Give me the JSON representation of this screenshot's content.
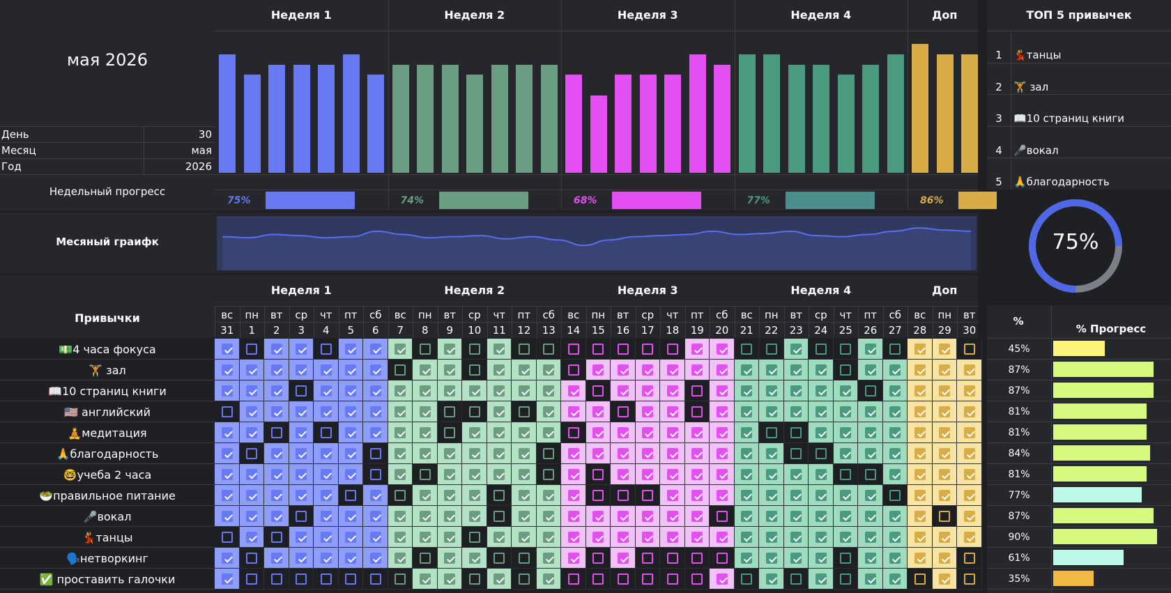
{
  "header": {
    "month_title": "мая 2026",
    "info": [
      {
        "label": "День",
        "value": "30"
      },
      {
        "label": "Месяц",
        "value": "мая"
      },
      {
        "label": "Год",
        "value": "2026"
      }
    ],
    "weekly_progress_label": "Недельный прогресс",
    "monthly_chart_label": "Месяный граифк",
    "habits_label": "Привычки"
  },
  "weeks": [
    {
      "title": "Неделя 1",
      "color": "#6779f5",
      "light": "#8f9ef9",
      "pct": "75%",
      "progress": 0.75,
      "days": [
        "вс",
        "пн",
        "вт",
        "ср",
        "чт",
        "пт",
        "сб"
      ],
      "nums": [
        "31",
        "1",
        "2",
        "3",
        "4",
        "5",
        "6"
      ],
      "bars": [
        0.92,
        0.76,
        0.84,
        0.84,
        0.84,
        0.92,
        0.76
      ]
    },
    {
      "title": "Неделя 2",
      "color": "#6b9d82",
      "light": "#b4e2c5",
      "pct": "74%",
      "progress": 0.74,
      "days": [
        "вс",
        "пн",
        "вт",
        "ср",
        "чт",
        "пт",
        "сб"
      ],
      "nums": [
        "7",
        "8",
        "9",
        "10",
        "11",
        "12",
        "13"
      ],
      "bars": [
        0.84,
        0.84,
        0.84,
        0.76,
        0.84,
        0.84,
        0.84
      ]
    },
    {
      "title": "Неделя 3",
      "color": "#e44ff2",
      "light": "#f1c2f7",
      "pct": "68%",
      "progress": 0.68,
      "days": [
        "вс",
        "пн",
        "вт",
        "ср",
        "чт",
        "пт",
        "сб"
      ],
      "nums": [
        "14",
        "15",
        "16",
        "17",
        "18",
        "19",
        "20"
      ],
      "bars": [
        0.76,
        0.6,
        0.76,
        0.76,
        0.76,
        0.92,
        0.84
      ]
    },
    {
      "title": "Неделя 4",
      "color": "#4a9a80",
      "light": "#9fdcbf",
      "pct": "77%",
      "progress": 0.77,
      "days": [
        "вс",
        "пн",
        "вт",
        "ср",
        "чт",
        "пт",
        "сб"
      ],
      "nums": [
        "21",
        "22",
        "23",
        "24",
        "25",
        "26",
        "27"
      ],
      "bars": [
        0.92,
        0.92,
        0.84,
        0.84,
        0.76,
        0.84,
        0.92
      ]
    },
    {
      "title": "Доп",
      "color": "#d8ad45",
      "light": "#f7e4a4",
      "pct": "86%",
      "progress": 0.86,
      "days": [
        "вс",
        "пн",
        "вт"
      ],
      "nums": [
        "28",
        "29",
        "30"
      ],
      "bars": [
        1.0,
        0.92,
        0.92
      ]
    }
  ],
  "monthly_curve": [
    0.62,
    0.6,
    0.66,
    0.64,
    0.6,
    0.62,
    0.72,
    0.66,
    0.6,
    0.62,
    0.64,
    0.58,
    0.62,
    0.56,
    0.46,
    0.56,
    0.62,
    0.64,
    0.66,
    0.72,
    0.66,
    0.68,
    0.72,
    0.64,
    0.62,
    0.66,
    0.72,
    0.78,
    0.74,
    0.72
  ],
  "top5": {
    "title": "ТОП 5 привычек",
    "items": [
      {
        "rank": "1",
        "name": "💃танцы"
      },
      {
        "rank": "2",
        "name": "🏋️ зал"
      },
      {
        "rank": "3",
        "name": "📖10 страниц книги"
      },
      {
        "rank": "4",
        "name": "🎤вокал"
      },
      {
        "rank": "5",
        "name": "🙏благодарность"
      }
    ]
  },
  "overall": {
    "value": 0.75,
    "label": "75%"
  },
  "pct_header": "%",
  "progress_header": "% Прогресс",
  "habits": [
    {
      "name": "💵4 часа фокуса",
      "pct": "45%",
      "value": 0.45,
      "color": "#fdf27a",
      "checks": "1011011 1010100 0000011 0010010 110"
    },
    {
      "name": "🏋️ зал",
      "pct": "87%",
      "value": 0.87,
      "color": "#d5fa7f",
      "checks": "1111111 0110111 0111111 1111011 111"
    },
    {
      "name": "📖10 страниц книги",
      "pct": "87%",
      "value": 0.87,
      "color": "#d5fa7f",
      "checks": "1110111 1111111 1011101 1111101 111"
    },
    {
      "name": "🇺🇸 английский",
      "pct": "81%",
      "value": 0.81,
      "color": "#d5fa7f",
      "checks": "0111111 1100101 1101101 1111111 111"
    },
    {
      "name": "🧘медитация",
      "pct": "81%",
      "value": 0.81,
      "color": "#d5fa7f",
      "checks": "1101011 1101111 0111111 1001111 111"
    },
    {
      "name": "🙏благодарность",
      "pct": "84%",
      "value": 0.84,
      "color": "#d5fa7f",
      "checks": "1011110 1111110 1111111 1100111 111"
    },
    {
      "name": "🤓учеба 2 часа",
      "pct": "81%",
      "value": 0.81,
      "color": "#d5fa7f",
      "checks": "1111110 1011110 1011111 1111001 111"
    },
    {
      "name": "🥗правильное питание",
      "pct": "77%",
      "value": 0.77,
      "color": "#bff9e9",
      "checks": "1111101 0111011 1000111 1111110 111"
    },
    {
      "name": "🎤вокал",
      "pct": "87%",
      "value": 0.87,
      "color": "#d5fa7f",
      "checks": "1110111 1111011 1111110 1111111 101"
    },
    {
      "name": "💃танцы",
      "pct": "90%",
      "value": 0.9,
      "color": "#d5fa7f",
      "checks": "0101111 1110111 1111111 1111111 111"
    },
    {
      "name": "🗣️нетворкинг",
      "pct": "61%",
      "value": 0.61,
      "color": "#bff9e9",
      "checks": "1011111 1011001 1010000 1111011 110"
    },
    {
      "name": "✅ проставить галочки",
      "pct": "35%",
      "value": 0.35,
      "color": "#f3b844",
      "checks": "1000000 0110101 0000001 0101011 010"
    }
  ]
}
